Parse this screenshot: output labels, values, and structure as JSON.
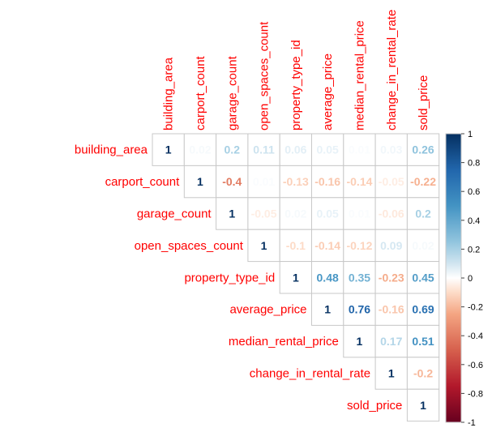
{
  "chart_data": {
    "type": "heatmap",
    "variables": [
      "building_area",
      "carport_count",
      "garage_count",
      "open_spaces_count",
      "property_type_id",
      "average_price",
      "median_rental_price",
      "change_in_rental_rate",
      "sold_price"
    ],
    "matrix": [
      [
        1,
        0.02,
        0.2,
        0.11,
        0.06,
        0.05,
        0.01,
        0.03,
        0.26
      ],
      [
        null,
        1,
        -0.4,
        0.01,
        -0.13,
        -0.16,
        -0.14,
        -0.05,
        -0.22
      ],
      [
        null,
        null,
        1,
        -0.05,
        0.02,
        0.05,
        0.01,
        -0.06,
        0.2
      ],
      [
        null,
        null,
        null,
        1,
        -0.1,
        -0.14,
        -0.12,
        0.09,
        0.02
      ],
      [
        null,
        null,
        null,
        null,
        1,
        0.48,
        0.35,
        -0.23,
        0.45
      ],
      [
        null,
        null,
        null,
        null,
        null,
        1,
        0.76,
        -0.16,
        0.69
      ],
      [
        null,
        null,
        null,
        null,
        null,
        null,
        1,
        0.17,
        0.51
      ],
      [
        null,
        null,
        null,
        null,
        null,
        null,
        null,
        1,
        -0.2
      ],
      [
        null,
        null,
        null,
        null,
        null,
        null,
        null,
        null,
        1
      ]
    ],
    "labels": [
      "1",
      "0.02",
      "0.2",
      "0.11",
      "0.06",
      "0.05",
      "0.01",
      "0.03",
      "0.26",
      "1",
      "-0.4",
      "0.01",
      "-0.13",
      "-0.16",
      "-0.14",
      "-0.05",
      "-0.22",
      "1",
      "-0.05",
      "0.02",
      "0.05",
      "0.01",
      "-0.06",
      "0.2",
      "1",
      "-0.1",
      "-0.14",
      "-0.12",
      "0.09",
      "0.02",
      "1",
      "0.48",
      "0.35",
      "-0.23",
      "0.45",
      "1",
      "0.76",
      "-0.16",
      "0.69",
      "1",
      "0.17",
      "0.51",
      "1",
      "-0.2",
      "1"
    ],
    "triangle": "upper",
    "color_scale": {
      "range": [
        -1,
        1
      ],
      "low": "#67001f",
      "mid": "#ffffff",
      "high": "#053061"
    },
    "colorbar_ticks": [
      "1",
      "0.8",
      "0.6",
      "0.4",
      "0.2",
      "0",
      "-0.2",
      "-0.4",
      "-0.6",
      "-0.8",
      "-1"
    ],
    "label_color": "#ff0000",
    "legend_position": "right"
  }
}
